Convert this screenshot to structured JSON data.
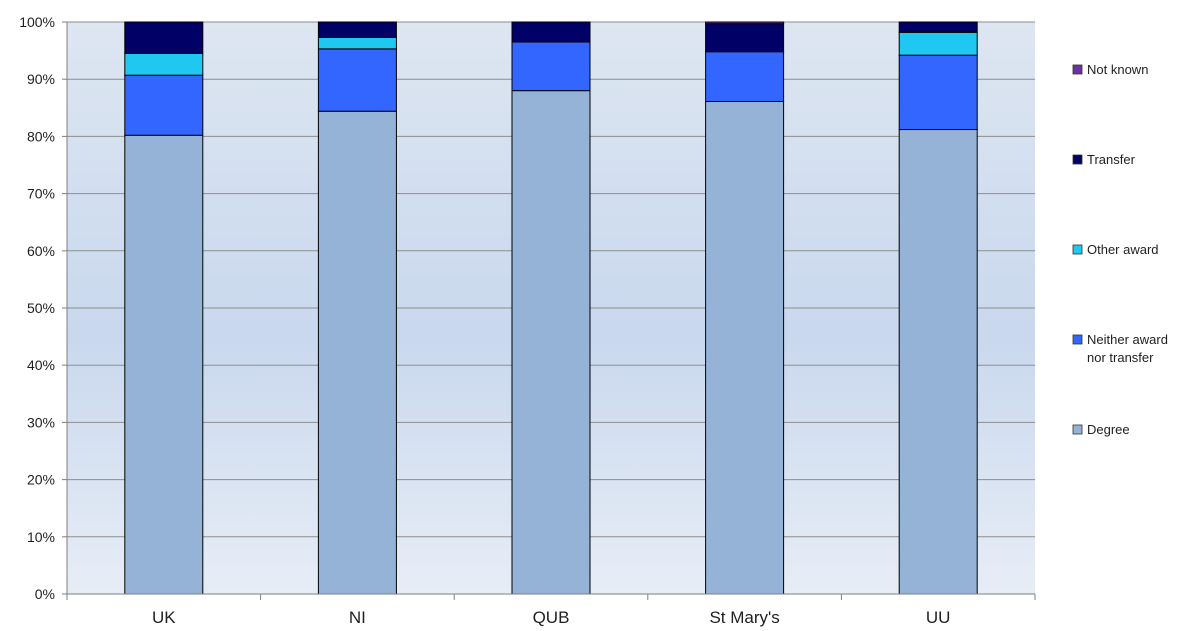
{
  "chart_data": {
    "type": "bar",
    "stacked": true,
    "percent": true,
    "categories": [
      "UK",
      "NI",
      "QUB",
      "St Mary's",
      "UU"
    ],
    "series": [
      {
        "name": "Degree",
        "color": "#95b3d7",
        "values": [
          80.2,
          84.4,
          88.0,
          86.1,
          81.2
        ]
      },
      {
        "name": "Neither award nor transfer",
        "color": "#3366ff",
        "values": [
          10.5,
          10.9,
          8.5,
          8.7,
          13.0
        ]
      },
      {
        "name": "Other award",
        "color": "#1fc8f0",
        "values": [
          3.8,
          2.0,
          0.0,
          0.0,
          4.0
        ]
      },
      {
        "name": "Transfer",
        "color": "#000066",
        "values": [
          5.5,
          2.7,
          3.5,
          4.9,
          1.8
        ]
      },
      {
        "name": "Not known",
        "color": "#7030a0",
        "values": [
          0.0,
          0.0,
          0.0,
          0.3,
          0.0
        ]
      }
    ],
    "legend": [
      {
        "name": "Not known",
        "color": "#7030a0",
        "lines": [
          "Not known"
        ]
      },
      {
        "name": "Transfer",
        "color": "#000066",
        "lines": [
          "Transfer"
        ]
      },
      {
        "name": "Other award",
        "color": "#1fc8f0",
        "lines": [
          "Other award"
        ]
      },
      {
        "name": "Neither award nor transfer",
        "color": "#3366ff",
        "lines": [
          "Neither award",
          "nor transfer"
        ]
      },
      {
        "name": "Degree",
        "color": "#95b3d7",
        "lines": [
          "Degree"
        ]
      }
    ],
    "yticks": [
      "0%",
      "10%",
      "20%",
      "30%",
      "40%",
      "50%",
      "60%",
      "70%",
      "80%",
      "90%",
      "100%"
    ],
    "ylim": [
      0,
      100
    ],
    "grid": true,
    "legend_position": "right",
    "title": "",
    "xlabel": "",
    "ylabel": ""
  }
}
